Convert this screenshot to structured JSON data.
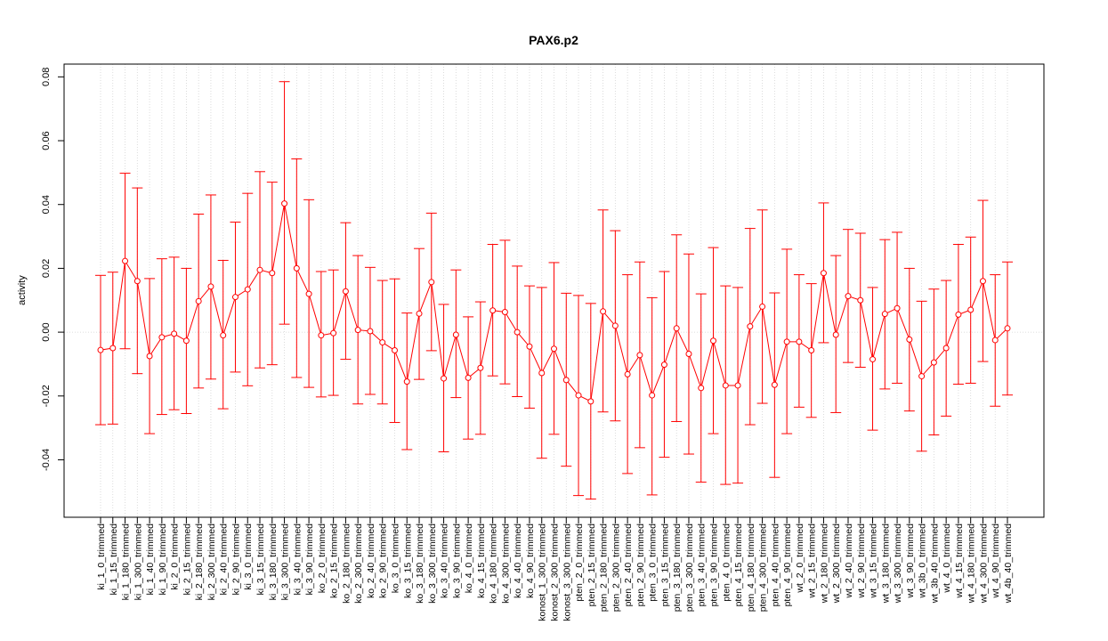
{
  "chart_data": {
    "type": "line",
    "title": "PAX6.p2",
    "xlabel": "",
    "ylabel": "activity",
    "ylim": [
      -0.058,
      0.084
    ],
    "yticks": [
      -0.04,
      -0.02,
      0.0,
      0.02,
      0.04,
      0.06,
      0.08
    ],
    "ytick_labels": [
      "-0.04",
      "-0.02",
      "0.00",
      "0.02",
      "0.04",
      "0.06",
      "0.08"
    ],
    "grid": true,
    "error_bars": true,
    "colors": {
      "series": "#ff0000",
      "grid": "#d3d3d3",
      "axis": "#000000"
    },
    "categories": [
      "ki_1_0_trimmed",
      "ki_1_15_trimmed",
      "ki_1_180_trimmed",
      "ki_1_300_trimmed",
      "ki_1_40_trimmed",
      "ki_1_90_trimmed",
      "ki_2_0_trimmed",
      "ki_2_15_trimmed",
      "ki_2_180_trimmed",
      "ki_2_300_trimmed",
      "ki_2_40_trimmed",
      "ki_2_90_trimmed",
      "ki_3_0_trimmed",
      "ki_3_15_trimmed",
      "ki_3_180_trimmed",
      "ki_3_300_trimmed",
      "ki_3_40_trimmed",
      "ki_3_90_trimmed",
      "ko_2_0_trimmed",
      "ko_2_15_trimmed",
      "ko_2_180_trimmed",
      "ko_2_300_trimmed",
      "ko_2_40_trimmed",
      "ko_2_90_trimmed",
      "ko_3_0_trimmed",
      "ko_3_15_trimmed",
      "ko_3_180_trimmed",
      "ko_3_300_trimmed",
      "ko_3_40_trimmed",
      "ko_3_90_trimmed",
      "ko_4_0_trimmed",
      "ko_4_15_trimmed",
      "ko_4_180_trimmed",
      "ko_4_300_trimmed",
      "ko_4_40_trimmed",
      "ko_4_90_trimmed",
      "konost_1_300_trimmed",
      "konost_2_300_trimmed",
      "konost_3_300_trimmed",
      "pten_2_0_trimmed",
      "pten_2_15_trimmed",
      "pten_2_180_trimmed",
      "pten_2_300_trimmed",
      "pten_2_40_trimmed",
      "pten_2_90_trimmed",
      "pten_3_0_trimmed",
      "pten_3_15_trimmed",
      "pten_3_180_trimmed",
      "pten_3_300_trimmed",
      "pten_3_40_trimmed",
      "pten_3_90_trimmed",
      "pten_4_0_trimmed",
      "pten_4_15_trimmed",
      "pten_4_180_trimmed",
      "pten_4_300_trimmed",
      "pten_4_40_trimmed",
      "pten_4_90_trimmed",
      "wt_2_0_trimmed",
      "wt_2_15_trimmed",
      "wt_2_180_trimmed",
      "wt_2_300_trimmed",
      "wt_2_40_trimmed",
      "wt_2_90_trimmed",
      "wt_3_15_trimmed",
      "wt_3_180_trimmed",
      "wt_3_300_trimmed",
      "wt_3_90_trimmed",
      "wt_3b_0_trimmed",
      "wt_3b_40_trimmed",
      "wt_4_0_trimmed",
      "wt_4_15_trimmed",
      "wt_4_180_trimmed",
      "wt_4_300_trimmed",
      "wt_4_90_trimmed",
      "wt_4b_40_trimmed"
    ],
    "series": [
      {
        "values": [
          -0.0056,
          -0.005,
          0.0223,
          0.016,
          -0.0075,
          -0.0016,
          -0.0005,
          -0.0027,
          0.0097,
          0.0143,
          -0.001,
          0.011,
          0.0134,
          0.0195,
          0.0185,
          0.0403,
          0.02,
          0.012,
          -0.001,
          -0.0003,
          0.0128,
          0.0007,
          0.0003,
          -0.0032,
          -0.0057,
          -0.0155,
          0.0058,
          0.0157,
          -0.0145,
          -0.0008,
          -0.0143,
          -0.0112,
          0.0068,
          0.0063,
          0.0,
          -0.0045,
          -0.0128,
          -0.0052,
          -0.015,
          -0.0198,
          -0.0217,
          0.0065,
          0.002,
          -0.0132,
          -0.0072,
          -0.0198,
          -0.0102,
          0.0012,
          -0.0068,
          -0.0175,
          -0.0027,
          -0.0167,
          -0.0167,
          0.0018,
          0.008,
          -0.0165,
          -0.003,
          -0.003,
          -0.0057,
          0.0185,
          -0.0008,
          0.0113,
          0.01,
          -0.0085,
          0.0057,
          0.0075,
          -0.0023,
          -0.0138,
          -0.0095,
          -0.005,
          0.0055,
          0.007,
          0.016,
          -0.0025,
          0.0012
        ],
        "upper": [
          0.0178,
          0.0188,
          0.0498,
          0.0452,
          0.0168,
          0.023,
          0.0235,
          0.02,
          0.037,
          0.043,
          0.0225,
          0.0345,
          0.0435,
          0.0503,
          0.047,
          0.0785,
          0.0543,
          0.0415,
          0.019,
          0.0195,
          0.0343,
          0.024,
          0.0203,
          0.0162,
          0.0167,
          0.006,
          0.0262,
          0.0373,
          0.0087,
          0.0195,
          0.0048,
          0.0095,
          0.0275,
          0.0288,
          0.0207,
          0.0145,
          0.014,
          0.0218,
          0.0122,
          0.0115,
          0.009,
          0.0383,
          0.0318,
          0.018,
          0.022,
          0.0108,
          0.019,
          0.0305,
          0.0245,
          0.012,
          0.0265,
          0.0145,
          0.014,
          0.0325,
          0.0383,
          0.0123,
          0.026,
          0.018,
          0.0152,
          0.0405,
          0.024,
          0.0322,
          0.031,
          0.014,
          0.029,
          0.0313,
          0.02,
          0.0097,
          0.0135,
          0.0162,
          0.0275,
          0.0298,
          0.0413,
          0.018,
          0.022
        ],
        "lower": [
          -0.029,
          -0.0288,
          -0.0052,
          -0.013,
          -0.0318,
          -0.0258,
          -0.0243,
          -0.0255,
          -0.0175,
          -0.0147,
          -0.024,
          -0.0125,
          -0.0168,
          -0.0112,
          -0.0102,
          0.0025,
          -0.0142,
          -0.0173,
          -0.0203,
          -0.0198,
          -0.0085,
          -0.0225,
          -0.0195,
          -0.0225,
          -0.0283,
          -0.0368,
          -0.0148,
          -0.0058,
          -0.0375,
          -0.0205,
          -0.0335,
          -0.032,
          -0.0137,
          -0.0162,
          -0.0202,
          -0.0238,
          -0.0395,
          -0.032,
          -0.042,
          -0.0512,
          -0.0523,
          -0.025,
          -0.0278,
          -0.0443,
          -0.0362,
          -0.051,
          -0.0392,
          -0.028,
          -0.0382,
          -0.047,
          -0.0318,
          -0.0477,
          -0.0473,
          -0.029,
          -0.0223,
          -0.0455,
          -0.0318,
          -0.0235,
          -0.0267,
          -0.0033,
          -0.0252,
          -0.0095,
          -0.011,
          -0.0307,
          -0.0178,
          -0.016,
          -0.0247,
          -0.0373,
          -0.0322,
          -0.0263,
          -0.0163,
          -0.016,
          -0.0092,
          -0.0232,
          -0.0197
        ]
      }
    ]
  }
}
